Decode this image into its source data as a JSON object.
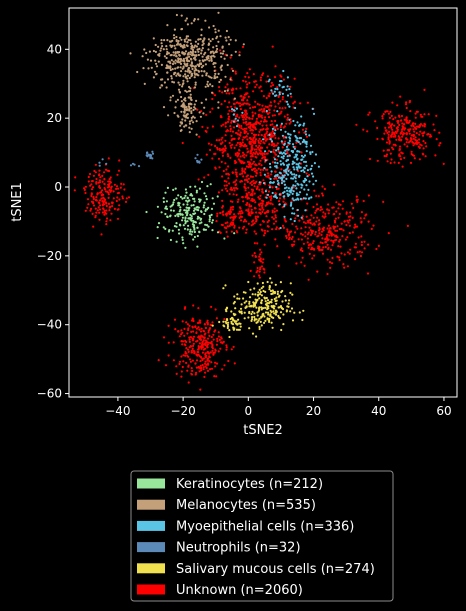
{
  "chart_data": {
    "type": "scatter",
    "title": "",
    "xlabel": "tSNE2",
    "ylabel": "tSNE1",
    "xlim": [
      -55,
      64
    ],
    "ylim": [
      -61,
      52
    ],
    "xticks": [
      -40,
      -20,
      0,
      20,
      40,
      60
    ],
    "yticks": [
      -60,
      -40,
      -20,
      0,
      20,
      40
    ],
    "xtick_labels": [
      "−40",
      "−20",
      "0",
      "20",
      "40",
      "60"
    ],
    "ytick_labels": [
      "−60",
      "−40",
      "−20",
      "0",
      "20",
      "40"
    ],
    "grid": false,
    "legend_position": "bottom-center",
    "background": "#000000",
    "series": [
      {
        "name": "Keratinocytes (n=212)",
        "color": "#98e69b",
        "clusters": [
          {
            "cx": -18,
            "cy": -8,
            "sx": 4.5,
            "sy": 4.0,
            "n": 212
          }
        ]
      },
      {
        "name": "Melanocytes (n=535)",
        "color": "#c4a07a",
        "clusters": [
          {
            "cx": -18,
            "cy": 37,
            "sx": 6.0,
            "sy": 5.0,
            "n": 430
          },
          {
            "cx": -19,
            "cy": 22,
            "sx": 2.0,
            "sy": 3.0,
            "n": 95
          },
          {
            "cx": -12,
            "cy": 37,
            "sx": 1.2,
            "sy": 0.6,
            "n": 10
          }
        ]
      },
      {
        "name": "Myoepithelial cells (n=336)",
        "color": "#5bc5e6",
        "clusters": [
          {
            "cx": 13,
            "cy": 6,
            "sx": 3.5,
            "sy": 7.0,
            "n": 300
          },
          {
            "cx": 10,
            "cy": 29,
            "sx": 1.5,
            "sy": 2.5,
            "n": 26
          },
          {
            "cx": -4,
            "cy": 22,
            "sx": 1.2,
            "sy": 2.0,
            "n": 10
          }
        ]
      },
      {
        "name": "Neutrophils (n=32)",
        "color": "#5b8ab8",
        "clusters": [
          {
            "cx": -30,
            "cy": 9,
            "sx": 0.7,
            "sy": 0.6,
            "n": 16
          },
          {
            "cx": -15,
            "cy": 8,
            "sx": 0.8,
            "sy": 0.6,
            "n": 8
          },
          {
            "cx": -45,
            "cy": 7,
            "sx": 0.8,
            "sy": 0.6,
            "n": 4
          },
          {
            "cx": -35,
            "cy": 6,
            "sx": 0.8,
            "sy": 0.6,
            "n": 4
          }
        ]
      },
      {
        "name": "Salivary mucous cells (n=274)",
        "color": "#f0e050",
        "clusters": [
          {
            "cx": 4,
            "cy": -35,
            "sx": 4.5,
            "sy": 3.5,
            "n": 240
          },
          {
            "cx": -5,
            "cy": -40,
            "sx": 1.5,
            "sy": 1.5,
            "n": 34
          }
        ]
      },
      {
        "name": "Unknown (n=2060)",
        "color": "#ff0000",
        "clusters": [
          {
            "cx": 1,
            "cy": 14,
            "sx": 6.5,
            "sy": 9.0,
            "n": 750
          },
          {
            "cx": 3,
            "cy": -5,
            "sx": 5.0,
            "sy": 4.5,
            "n": 200
          },
          {
            "cx": 24,
            "cy": -13,
            "sx": 7.0,
            "sy": 5.0,
            "n": 310
          },
          {
            "cx": 48,
            "cy": 15,
            "sx": 5.0,
            "sy": 4.0,
            "n": 260
          },
          {
            "cx": -44,
            "cy": -2,
            "sx": 3.0,
            "sy": 4.0,
            "n": 175
          },
          {
            "cx": -15,
            "cy": -46,
            "sx": 4.0,
            "sy": 4.5,
            "n": 290
          },
          {
            "cx": -6,
            "cy": -10,
            "sx": 1.8,
            "sy": 2.5,
            "n": 45
          },
          {
            "cx": 3,
            "cy": -22,
            "sx": 1.5,
            "sy": 2.5,
            "n": 30
          }
        ]
      }
    ]
  }
}
